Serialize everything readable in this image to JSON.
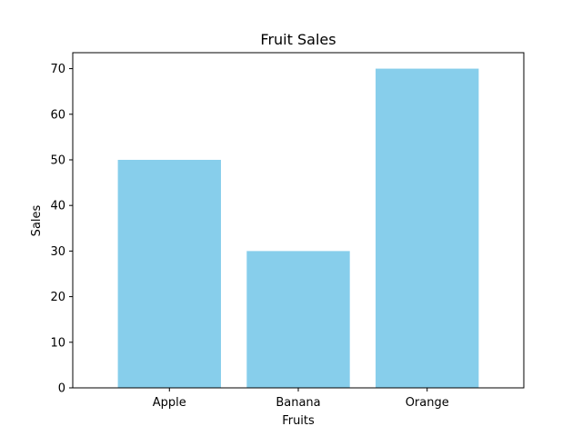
{
  "chart_data": {
    "type": "bar",
    "title": "Fruit Sales",
    "xlabel": "Fruits",
    "ylabel": "Sales",
    "categories": [
      "Apple",
      "Banana",
      "Orange"
    ],
    "values": [
      50,
      30,
      70
    ],
    "ylim": [
      0,
      73.5
    ],
    "yticks": [
      0,
      10,
      20,
      30,
      40,
      50,
      60,
      70
    ],
    "bar_color": "#87CEEB",
    "grid": false,
    "legend": "none"
  }
}
